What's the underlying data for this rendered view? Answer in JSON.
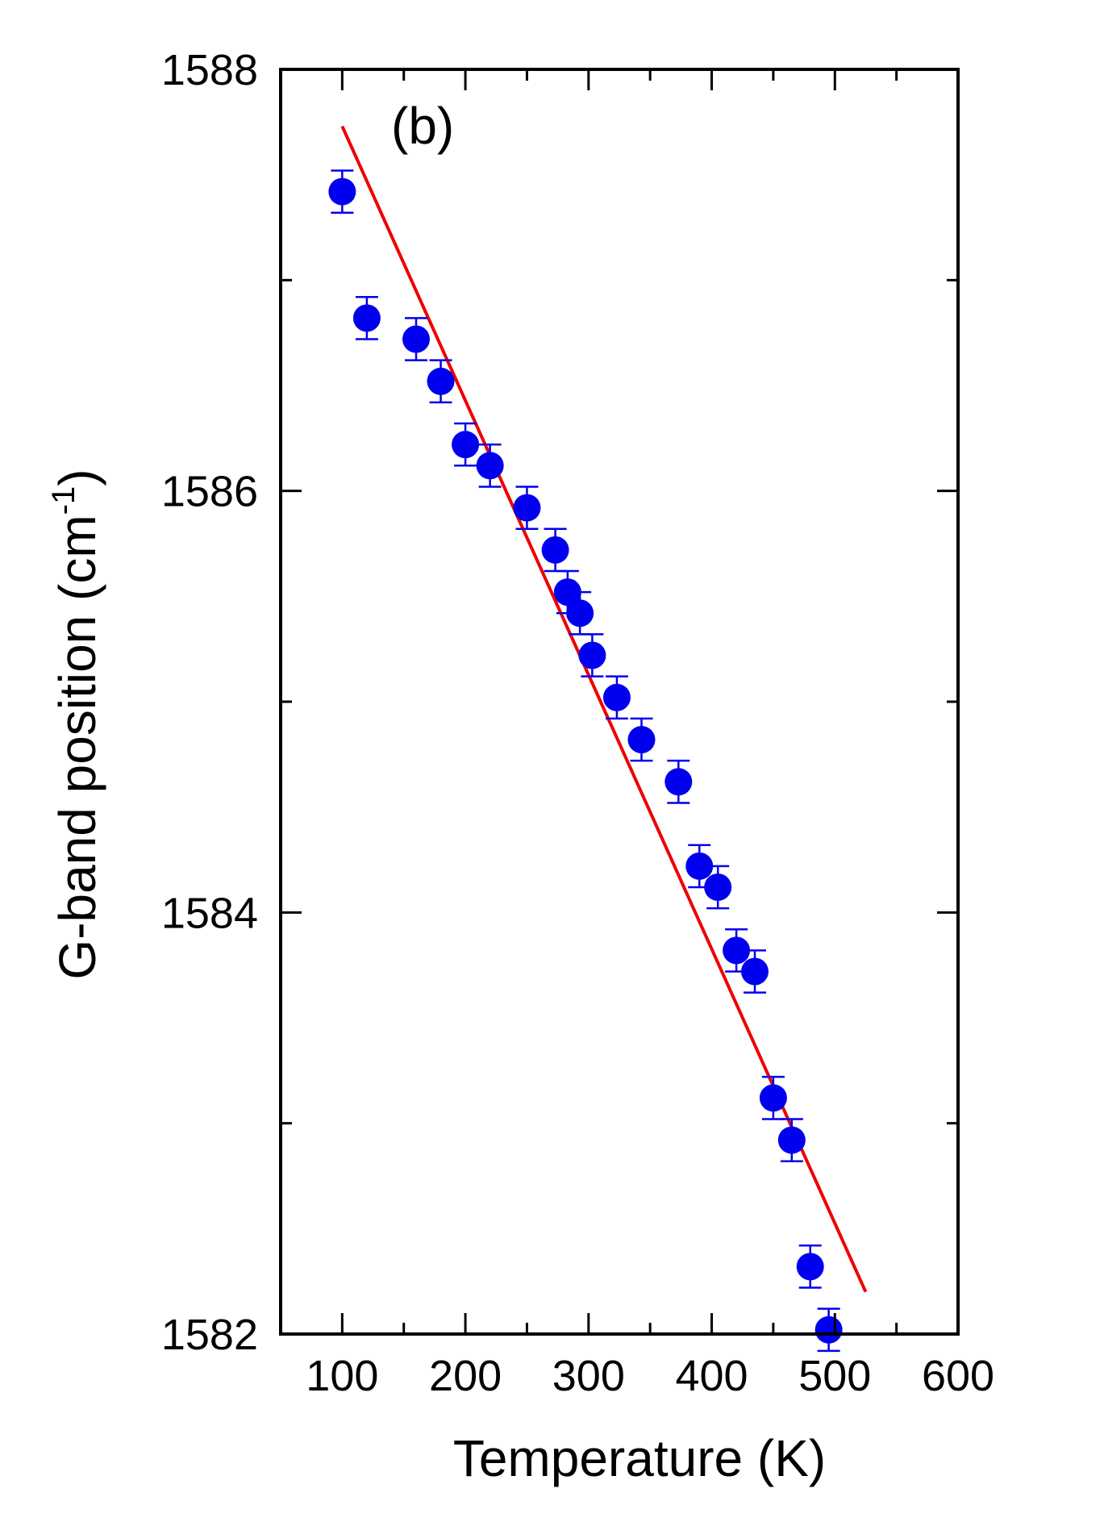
{
  "chart_data": {
    "type": "scatter",
    "panel_label": "(b)",
    "xlabel": "Temperature (K)",
    "ylabel_main": "G-band position (cm",
    "ylabel_sup": "-1",
    "ylabel_close": ")",
    "xlim": [
      50,
      600
    ],
    "ylim": [
      1582,
      1588
    ],
    "xticks": [
      100,
      200,
      300,
      400,
      500,
      600
    ],
    "xtick_labels": [
      "100",
      "200",
      "300",
      "400",
      "500",
      "600"
    ],
    "x_minor_ticks": [
      50,
      150,
      250,
      350,
      450,
      550
    ],
    "yticks": [
      1582,
      1584,
      1586,
      1588
    ],
    "ytick_labels": [
      "1582",
      "1584",
      "1586",
      "1588"
    ],
    "y_minor_ticks": [
      1583,
      1585,
      1587
    ],
    "grid": false,
    "series": [
      {
        "kind": "points",
        "color": "#0000ee",
        "x": [
          100,
          120,
          160,
          180,
          200,
          220,
          250,
          273,
          283,
          293,
          303,
          323,
          343,
          373,
          390,
          405,
          420,
          435,
          450,
          465,
          480,
          495
        ],
        "y": [
          1587.42,
          1586.82,
          1586.72,
          1586.52,
          1586.22,
          1586.12,
          1585.92,
          1585.72,
          1585.52,
          1585.42,
          1585.22,
          1585.02,
          1584.82,
          1584.62,
          1584.22,
          1584.12,
          1583.82,
          1583.72,
          1583.12,
          1582.92,
          1582.32,
          1582.02
        ],
        "yerr": [
          0.1,
          0.1,
          0.1,
          0.1,
          0.1,
          0.1,
          0.1,
          0.1,
          0.1,
          0.1,
          0.1,
          0.1,
          0.1,
          0.1,
          0.1,
          0.1,
          0.1,
          0.1,
          0.1,
          0.1,
          0.1,
          0.1
        ]
      },
      {
        "kind": "line",
        "color": "#ee0000",
        "x": [
          100,
          525
        ],
        "y": [
          1587.73,
          1582.2
        ]
      }
    ]
  }
}
